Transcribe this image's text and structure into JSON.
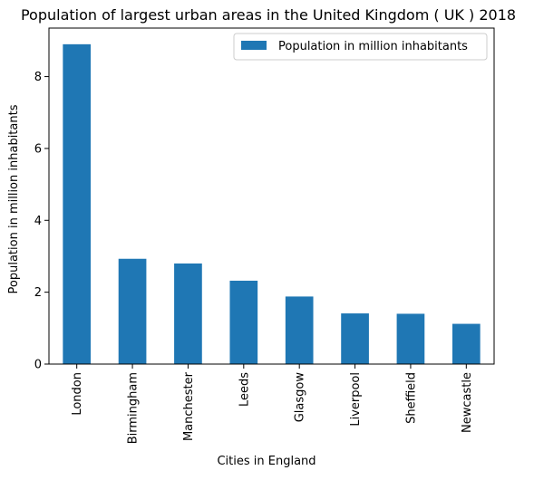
{
  "chart_data": {
    "type": "bar",
    "title": "Population of largest urban areas in the United Kingdom ( UK ) 2018",
    "xlabel": "Cities in England",
    "ylabel": "Population in million inhabitants",
    "categories": [
      "London",
      "Birmingham",
      "Manchester",
      "Leeds",
      "Glasgow",
      "Liverpool",
      "Sheffield",
      "Newcastle"
    ],
    "series": [
      {
        "name": "Population in million inhabitants",
        "values": [
          8.9,
          2.93,
          2.8,
          2.32,
          1.88,
          1.41,
          1.4,
          1.12
        ],
        "color": "#1f77b4"
      }
    ],
    "ylim": [
      0,
      9.35
    ],
    "yticks": [
      0,
      2,
      4,
      6,
      8
    ],
    "legend_position": "top-right",
    "grid": false
  }
}
